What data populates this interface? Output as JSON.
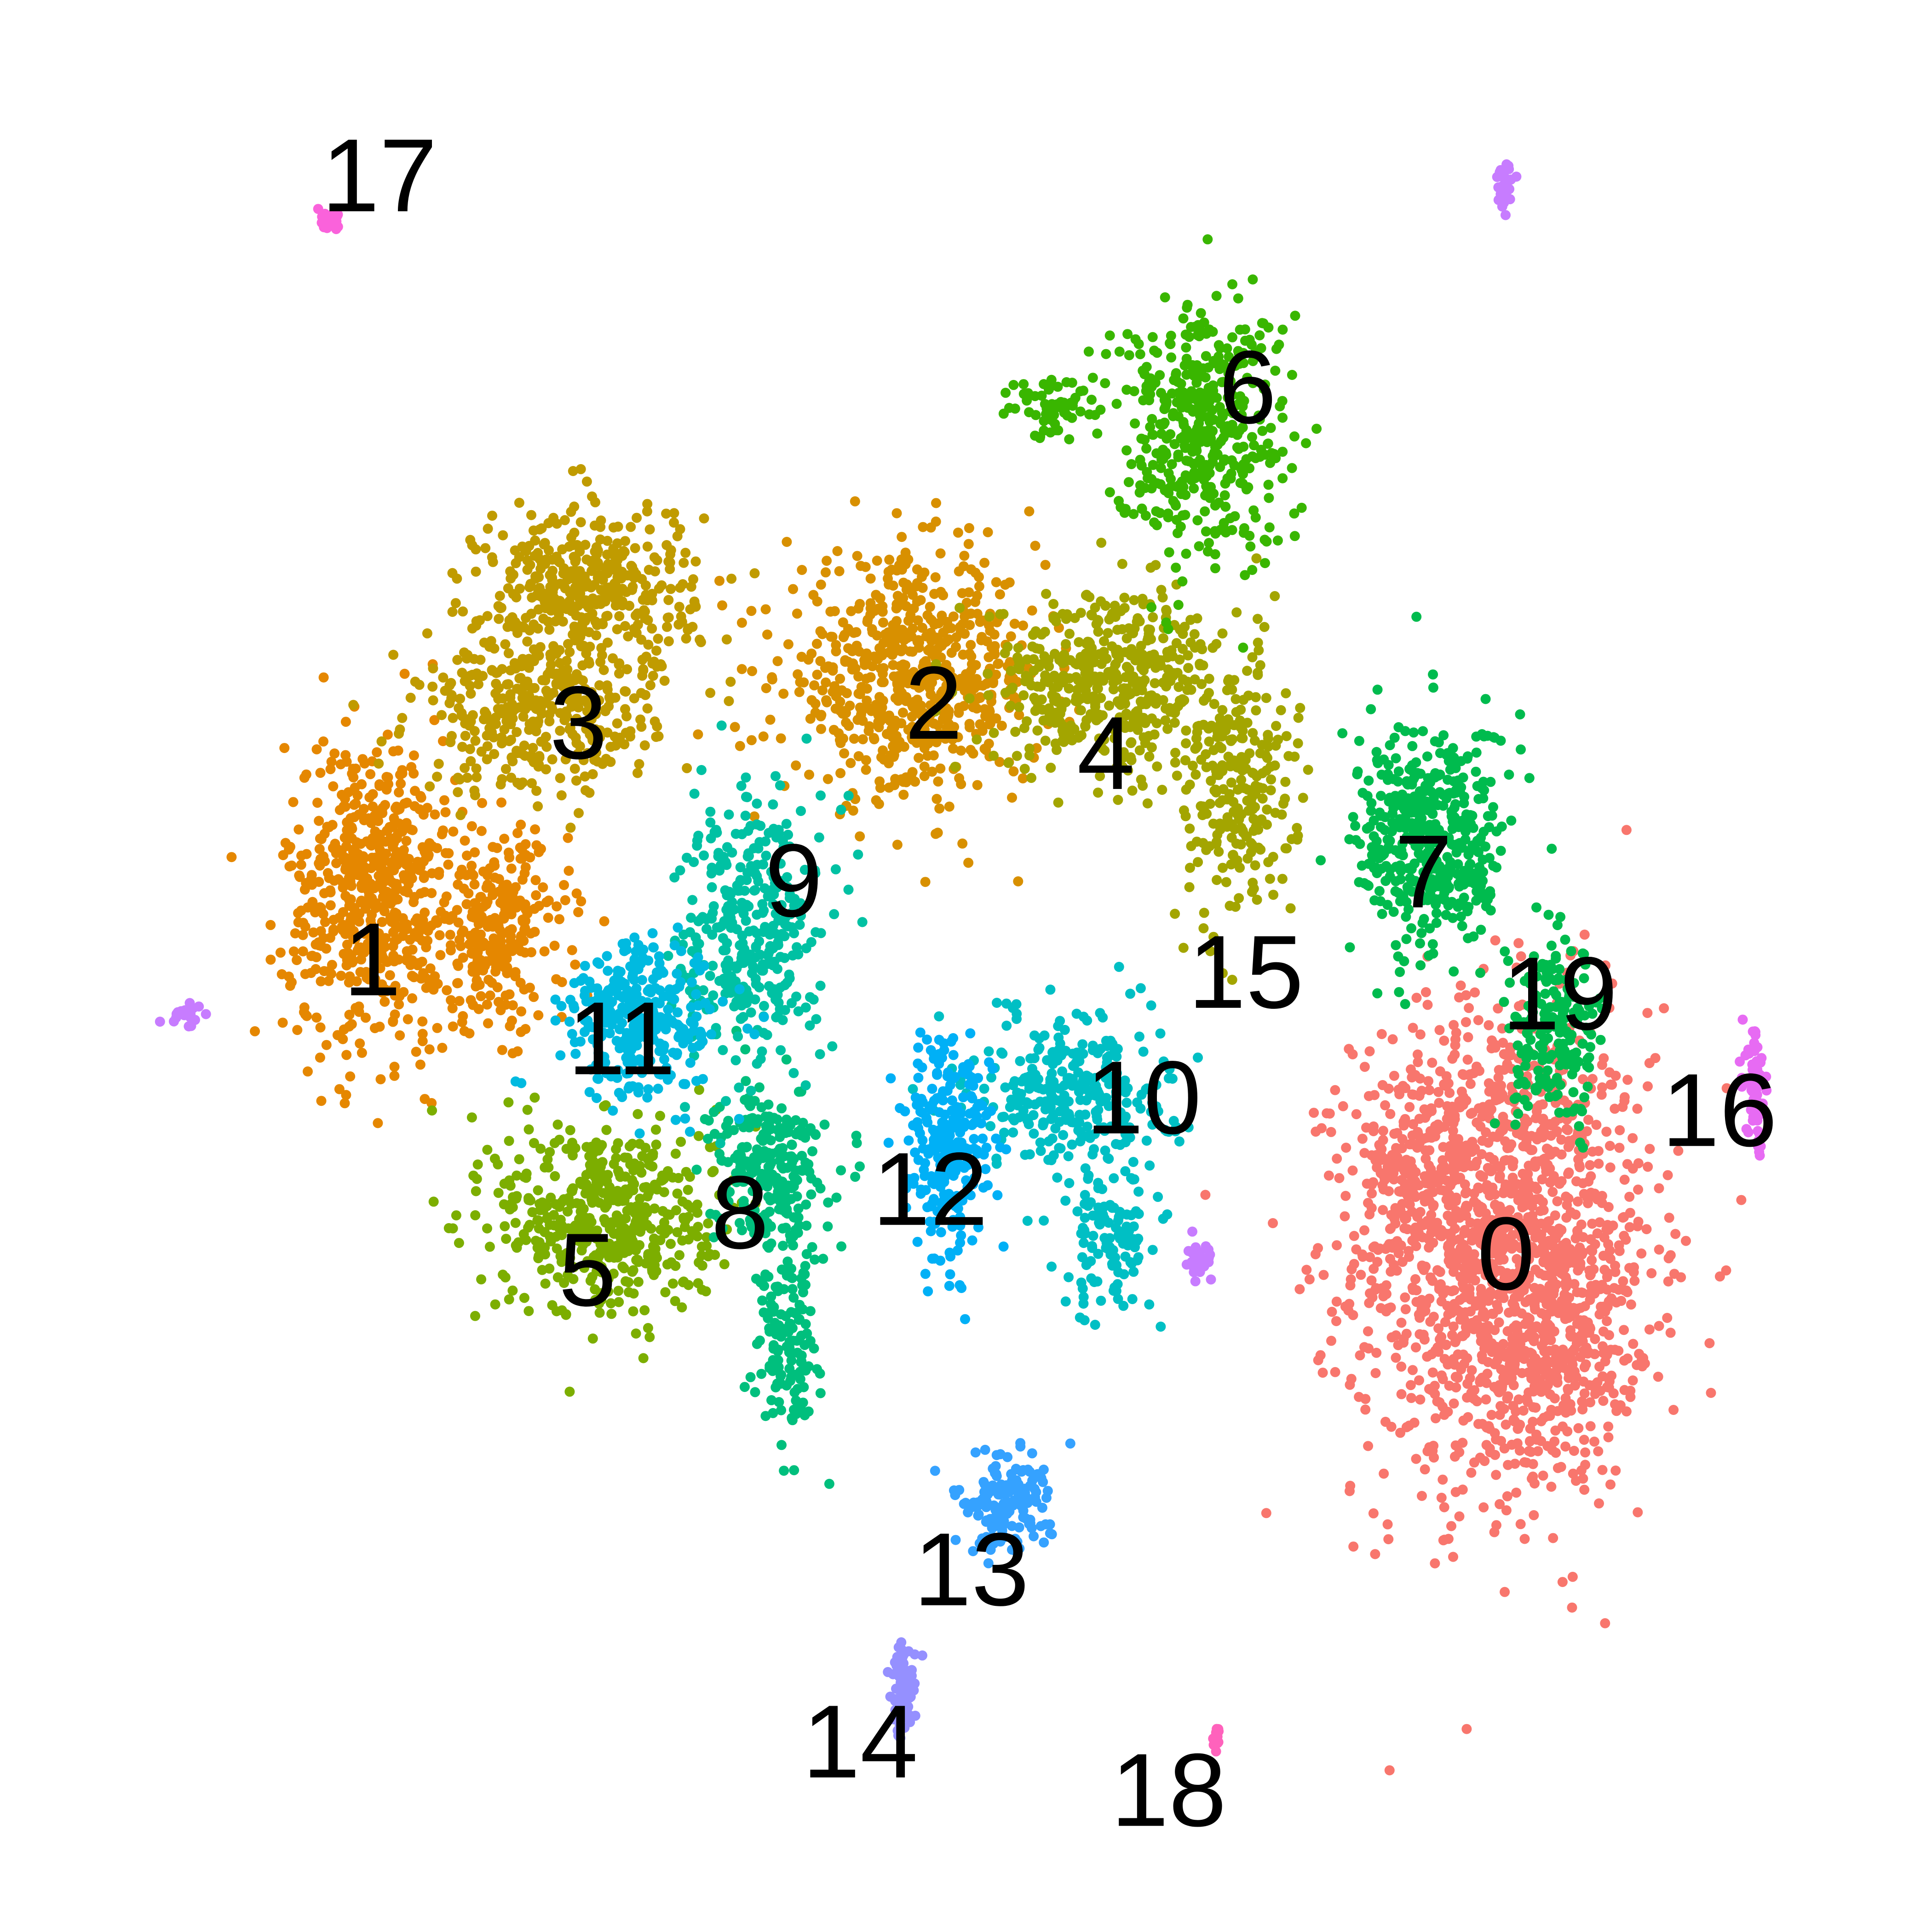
{
  "chart_data": {
    "type": "scatter",
    "title": "",
    "xlabel": "",
    "ylabel": "",
    "axes_visible": false,
    "grid": false,
    "legend": "none",
    "xlim": [
      0,
      100
    ],
    "ylim": [
      0,
      100
    ],
    "clusters": [
      {
        "label": "0",
        "color": "#F8766D",
        "label_pos": [
          80.1,
          33.5
        ],
        "blobs": [
          [
            80,
            34,
            7.5,
            12.5,
            1400
          ],
          [
            76,
            39,
            4,
            5,
            200
          ],
          [
            83,
            30,
            4,
            6,
            200
          ]
        ]
      },
      {
        "label": "1",
        "color": "#E58700",
        "label_pos": [
          16.9,
          49.9
        ],
        "blobs": [
          [
            17,
            54,
            4.5,
            8,
            600
          ],
          [
            24,
            52,
            3.5,
            5,
            250
          ]
        ]
      },
      {
        "label": "2",
        "color": "#D89000",
        "label_pos": [
          48.2,
          64.2
        ],
        "blobs": [
          [
            47,
            66,
            6.5,
            6,
            650
          ]
        ]
      },
      {
        "label": "3",
        "color": "#C09B00",
        "label_pos": [
          28.4,
          63.1
        ],
        "blobs": [
          [
            29,
            71,
            5.5,
            4.5,
            400
          ],
          [
            26,
            64,
            6,
            4,
            350
          ]
        ]
      },
      {
        "label": "4",
        "color": "#A3A500",
        "label_pos": [
          57.8,
          61.4
        ],
        "blobs": [
          [
            58,
            66,
            6,
            4.5,
            450
          ],
          [
            65,
            60,
            3,
            7,
            250
          ]
        ]
      },
      {
        "label": "5",
        "color": "#7CAE00",
        "label_pos": [
          28.9,
          32.6
        ],
        "blobs": [
          [
            30,
            36,
            5.5,
            5,
            500
          ]
        ]
      },
      {
        "label": "6",
        "color": "#39B600",
        "label_pos": [
          65.7,
          81.8
        ],
        "blobs": [
          [
            63,
            80,
            4.5,
            6.5,
            450
          ],
          [
            55,
            81,
            2.5,
            1.5,
            60
          ]
        ]
      },
      {
        "label": "7",
        "color": "#00BB4E",
        "label_pos": [
          75.5,
          54.8
        ],
        "blobs": [
          [
            76,
            57,
            3.8,
            6,
            450
          ]
        ]
      },
      {
        "label": "8",
        "color": "#00BF7D",
        "label_pos": [
          37.4,
          35.8
        ],
        "blobs": [
          [
            39,
            39,
            2.8,
            4,
            250
          ],
          [
            40,
            29,
            1.6,
            5,
            150
          ]
        ]
      },
      {
        "label": "9",
        "color": "#00C1A3",
        "label_pos": [
          40.4,
          54.3
        ],
        "blobs": [
          [
            38,
            52,
            3.5,
            7,
            350
          ]
        ]
      },
      {
        "label": "10",
        "color": "#00BFC4",
        "label_pos": [
          59.9,
          42.2
        ],
        "blobs": [
          [
            56,
            43,
            5,
            4,
            300
          ],
          [
            58,
            35,
            2.5,
            4,
            120
          ]
        ]
      },
      {
        "label": "11",
        "color": "#00BAE0",
        "label_pos": [
          30.8,
          45.5
        ],
        "blobs": [
          [
            32,
            47,
            4,
            4,
            300
          ]
        ]
      },
      {
        "label": "12",
        "color": "#00B0F6",
        "label_pos": [
          48.0,
          37.1
        ],
        "blobs": [
          [
            49,
            40,
            2.2,
            6,
            250
          ]
        ]
      },
      {
        "label": "13",
        "color": "#35A2FF",
        "label_pos": [
          50.3,
          15.9
        ],
        "blobs": [
          [
            52,
            20,
            2.5,
            2.5,
            150
          ]
        ]
      },
      {
        "label": "14",
        "color": "#9590FF",
        "label_pos": [
          44.1,
          6.3
        ],
        "blobs": [
          [
            46.5,
            9.5,
            0.6,
            2.2,
            100
          ]
        ]
      },
      {
        "label": "15",
        "color": "#C77CFF",
        "label_pos": [
          65.6,
          49.2
        ],
        "blobs": [
          [
            63,
            33.5,
            0.6,
            0.8,
            40
          ],
          [
            80,
            93.5,
            0.4,
            1.2,
            30
          ],
          [
            6.5,
            47,
            1,
            0.8,
            20
          ]
        ]
      },
      {
        "label": "16",
        "color": "#E76BF3",
        "label_pos": [
          92.0,
          41.5
        ],
        "blobs": [
          [
            94,
            43,
            0.5,
            3,
            80
          ]
        ]
      },
      {
        "label": "17",
        "color": "#FA62DB",
        "label_pos": [
          17.3,
          93.6
        ],
        "blobs": [
          [
            14.6,
            91.5,
            0.6,
            0.4,
            40
          ]
        ]
      },
      {
        "label": "18",
        "color": "#FF62BC",
        "label_pos": [
          61.3,
          3.6
        ],
        "blobs": [
          [
            64,
            7,
            0.2,
            0.5,
            15
          ]
        ]
      },
      {
        "label": "19",
        "color": "#FF6C91",
        "label_pos": [
          83.1,
          48.0
        ],
        "blobs": []
      }
    ],
    "overlay_greens": [
      {
        "color": "#00BB4E",
        "blobs": [
          [
            83,
            46,
            2.2,
            4.5,
            200
          ]
        ]
      }
    ]
  }
}
